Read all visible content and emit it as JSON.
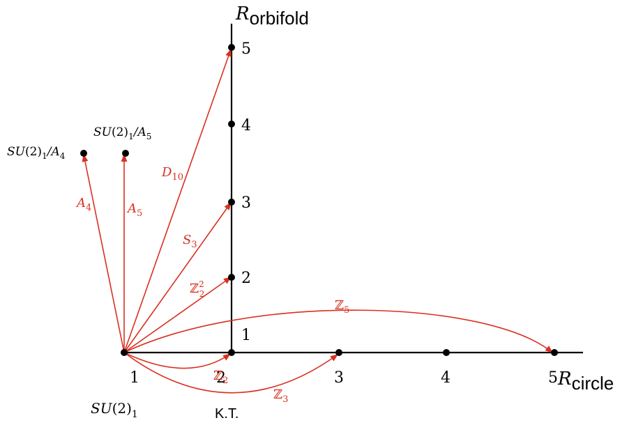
{
  "axes": {
    "x": {
      "symbol": "R",
      "subscript": "circle"
    },
    "y": {
      "symbol": "R",
      "subscript": "orbifold"
    }
  },
  "x_ticks": [
    "1",
    "2",
    "3",
    "4",
    "5"
  ],
  "y_ticks": [
    "1",
    "2",
    "3",
    "4",
    "5"
  ],
  "point_labels": {
    "origin": {
      "base": "SU",
      "args": "(2)",
      "sub": "1"
    },
    "kt": "K.T.",
    "a4_point": {
      "base": "SU",
      "args": "(2)",
      "sub": "1",
      "slash": "/A",
      "sub2": "4"
    },
    "a5_point": {
      "base": "SU",
      "args": "(2)",
      "sub": "1",
      "slash": "/A",
      "sub2": "5"
    }
  },
  "arrows": [
    {
      "id": "A4",
      "base": "A",
      "sub": "4",
      "sup": ""
    },
    {
      "id": "A5",
      "base": "A",
      "sub": "5",
      "sup": ""
    },
    {
      "id": "D10",
      "base": "D",
      "sub": "10",
      "sup": ""
    },
    {
      "id": "S3",
      "base": "S",
      "sub": "3",
      "sup": ""
    },
    {
      "id": "Z2sq",
      "base": "ℤ",
      "sub": "2",
      "sup": "2"
    },
    {
      "id": "Z5",
      "base": "ℤ",
      "sub": "5",
      "sup": ""
    },
    {
      "id": "Z2",
      "base": "ℤ",
      "sub": "2",
      "sup": ""
    },
    {
      "id": "Z3",
      "base": "ℤ",
      "sub": "3",
      "sup": ""
    }
  ],
  "colors": {
    "arrow": "#d9301f",
    "axis": "#000000"
  }
}
